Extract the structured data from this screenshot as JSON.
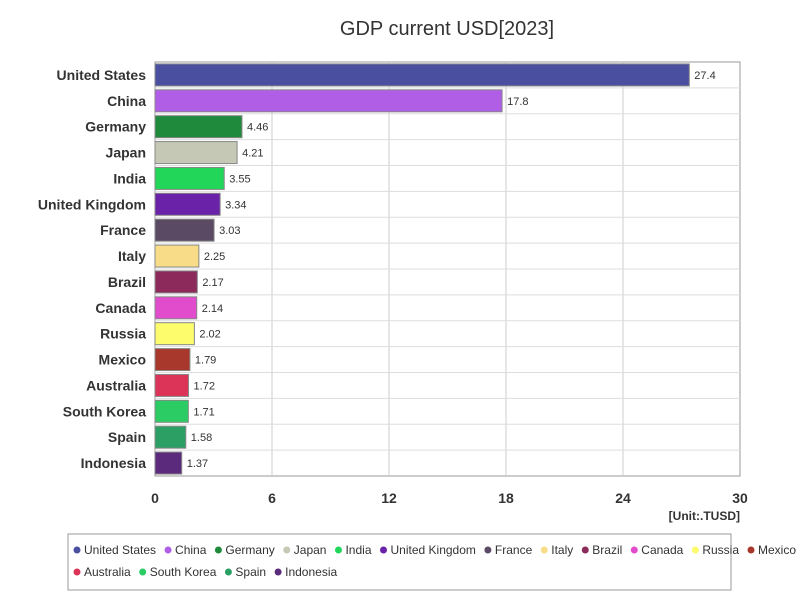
{
  "chart_data": {
    "type": "bar",
    "orientation": "horizontal",
    "title": "GDP current USD[2023]",
    "unit": "[Unit:.TUSD]",
    "categories": [
      "United States",
      "China",
      "Germany",
      "Japan",
      "India",
      "United Kingdom",
      "France",
      "Italy",
      "Brazil",
      "Canada",
      "Russia",
      "Mexico",
      "Australia",
      "South Korea",
      "Spain",
      "Indonesia"
    ],
    "values": [
      27.4,
      17.8,
      4.46,
      4.21,
      3.55,
      3.34,
      3.03,
      2.25,
      2.17,
      2.14,
      2.02,
      1.79,
      1.72,
      1.71,
      1.58,
      1.37
    ],
    "value_labels": [
      "27.4",
      "17.8",
      "4.46",
      "4.21",
      "3.55",
      "3.34",
      "3.03",
      "2.25",
      "2.17",
      "2.14",
      "2.02",
      "1.79",
      "1.72",
      "1.71",
      "1.58",
      "1.37"
    ],
    "colors": [
      "#4a4fa0",
      "#b05ee6",
      "#1f8a3c",
      "#c4c8b4",
      "#22d65a",
      "#6a22a8",
      "#5a4a64",
      "#f8dc88",
      "#8c2a5c",
      "#e04ccc",
      "#fcfc6c",
      "#a8382c",
      "#dc3458",
      "#2ccc64",
      "#2ca064",
      "#5c2a7c"
    ],
    "xlim": [
      0,
      30
    ],
    "xticks": [
      0,
      6,
      12,
      18,
      24,
      30
    ],
    "xtick_labels": [
      "0",
      "6",
      "12",
      "18",
      "24",
      "30"
    ],
    "grid": true,
    "legend_placement": "bottom"
  }
}
